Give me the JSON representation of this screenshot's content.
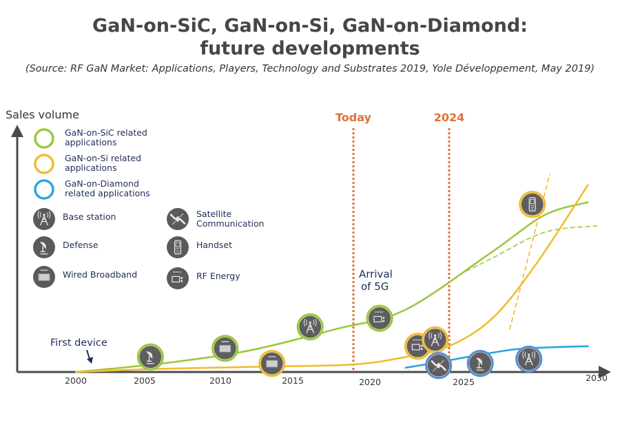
{
  "title_line1": "GaN-on-SiC, GaN-on-Si, GaN-on-Diamond:",
  "title_line2": "future developments",
  "source": "(Source: RF GaN Market: Applications, Players, Technology and Substrates 2019, Yole Développement, May 2019)",
  "colors": {
    "sic": "#9bc83c",
    "si": "#f2bb30",
    "diamond": "#2aa6dc",
    "diamond_ring": "#5b8fcf",
    "marker": "#e0703a",
    "icon_fill": "#5e5e5e",
    "axis": "#4a4a4a",
    "text": "#1f2d5a"
  },
  "axis": {
    "ylabel": "Sales volume",
    "xticks": [
      "2000",
      "2005",
      "2010",
      "2015",
      "2020",
      "2025",
      "2030"
    ]
  },
  "legend": {
    "series": [
      {
        "line1": "GaN-on-SiC related",
        "line2": "applications",
        "color_key": "sic"
      },
      {
        "line1": "GaN-on-Si related",
        "line2": "applications",
        "color_key": "si"
      },
      {
        "line1": "GaN-on-Diamond",
        "line2": "related applications",
        "color_key": "diamond"
      }
    ],
    "applications": [
      {
        "icon": "base-station-icon",
        "line1": "Base station",
        "line2": ""
      },
      {
        "icon": "satellite-icon",
        "line1": "Satellite",
        "line2": "Communication"
      },
      {
        "icon": "defense-icon",
        "line1": "Defense",
        "line2": ""
      },
      {
        "icon": "handset-icon",
        "line1": "Handset",
        "line2": ""
      },
      {
        "icon": "wired-broadband-icon",
        "line1": "Wired Broadband",
        "line2": ""
      },
      {
        "icon": "rf-energy-icon",
        "line1": "RF Energy",
        "line2": ""
      }
    ]
  },
  "markers": {
    "today": {
      "label": "Today",
      "year": 2019
    },
    "future": {
      "label": "2024",
      "year": 2024
    }
  },
  "annotations": {
    "first_device": "First device",
    "arrival_5g_line1": "Arrival",
    "arrival_5g_line2": "of 5G"
  },
  "chart_data": {
    "type": "line",
    "title": "GaN-on-SiC, GaN-on-Si, GaN-on-Diamond: future developments",
    "xlabel": "",
    "ylabel": "Sales volume",
    "xlim": [
      2000,
      2030
    ],
    "ylim": [
      0,
      100
    ],
    "grid": false,
    "legend_position": "top-left",
    "series": [
      {
        "name": "GaN-on-SiC related applications",
        "color_key": "sic",
        "style": "solid",
        "x": [
          2000,
          2005,
          2010,
          2015,
          2019,
          2024,
          2027,
          2029.5
        ],
        "y": [
          0,
          4,
          10,
          20,
          29,
          56,
          73,
          79
        ]
      },
      {
        "name": "GaN-on-SiC related applications (alternative)",
        "color_key": "sic",
        "style": "dashed",
        "x": [
          2022.5,
          2024,
          2027,
          2030
        ],
        "y": [
          47,
          53,
          65,
          68
        ]
      },
      {
        "name": "GaN-on-Si related applications",
        "color_key": "si",
        "style": "solid",
        "x": [
          2000,
          2005,
          2011,
          2016,
          2019,
          2021.5,
          2024,
          2026.5,
          2029.5
        ],
        "y": [
          0,
          1.5,
          2.5,
          3.5,
          7,
          12,
          25,
          50,
          87
        ]
      },
      {
        "name": "GaN-on-Si related applications (handset)",
        "color_key": "si",
        "style": "dashed",
        "x": [
          2025,
          2027.3
        ],
        "y": [
          20,
          92
        ]
      },
      {
        "name": "GaN-on-Diamond related applications",
        "color_key": "diamond",
        "style": "solid",
        "x": [
          2019,
          2020.5,
          2024,
          2026,
          2029.5
        ],
        "y": [
          2,
          4,
          9,
          11,
          12
        ]
      }
    ],
    "application_points": [
      {
        "series": "sic",
        "app": "defense",
        "x": 2004.3,
        "y": 7
      },
      {
        "series": "sic",
        "app": "wired-broadband",
        "x": 2008.6,
        "y": 11
      },
      {
        "series": "sic",
        "app": "base-station",
        "x": 2013.5,
        "y": 21
      },
      {
        "series": "sic",
        "app": "rf-energy",
        "x": 2017.5,
        "y": 25
      },
      {
        "series": "si",
        "app": "wired-broadband",
        "x": 2011.3,
        "y": 4
      },
      {
        "series": "si",
        "app": "rf-energy",
        "x": 2019.7,
        "y": 12
      },
      {
        "series": "si",
        "app": "base-station",
        "x": 2020.7,
        "y": 15
      },
      {
        "series": "si",
        "app": "handset",
        "x": 2026.3,
        "y": 78
      },
      {
        "series": "diamond",
        "app": "satellite",
        "x": 2020.9,
        "y": 3
      },
      {
        "series": "diamond",
        "app": "defense",
        "x": 2023.3,
        "y": 4
      },
      {
        "series": "diamond",
        "app": "base-station",
        "x": 2026.1,
        "y": 6
      }
    ]
  }
}
